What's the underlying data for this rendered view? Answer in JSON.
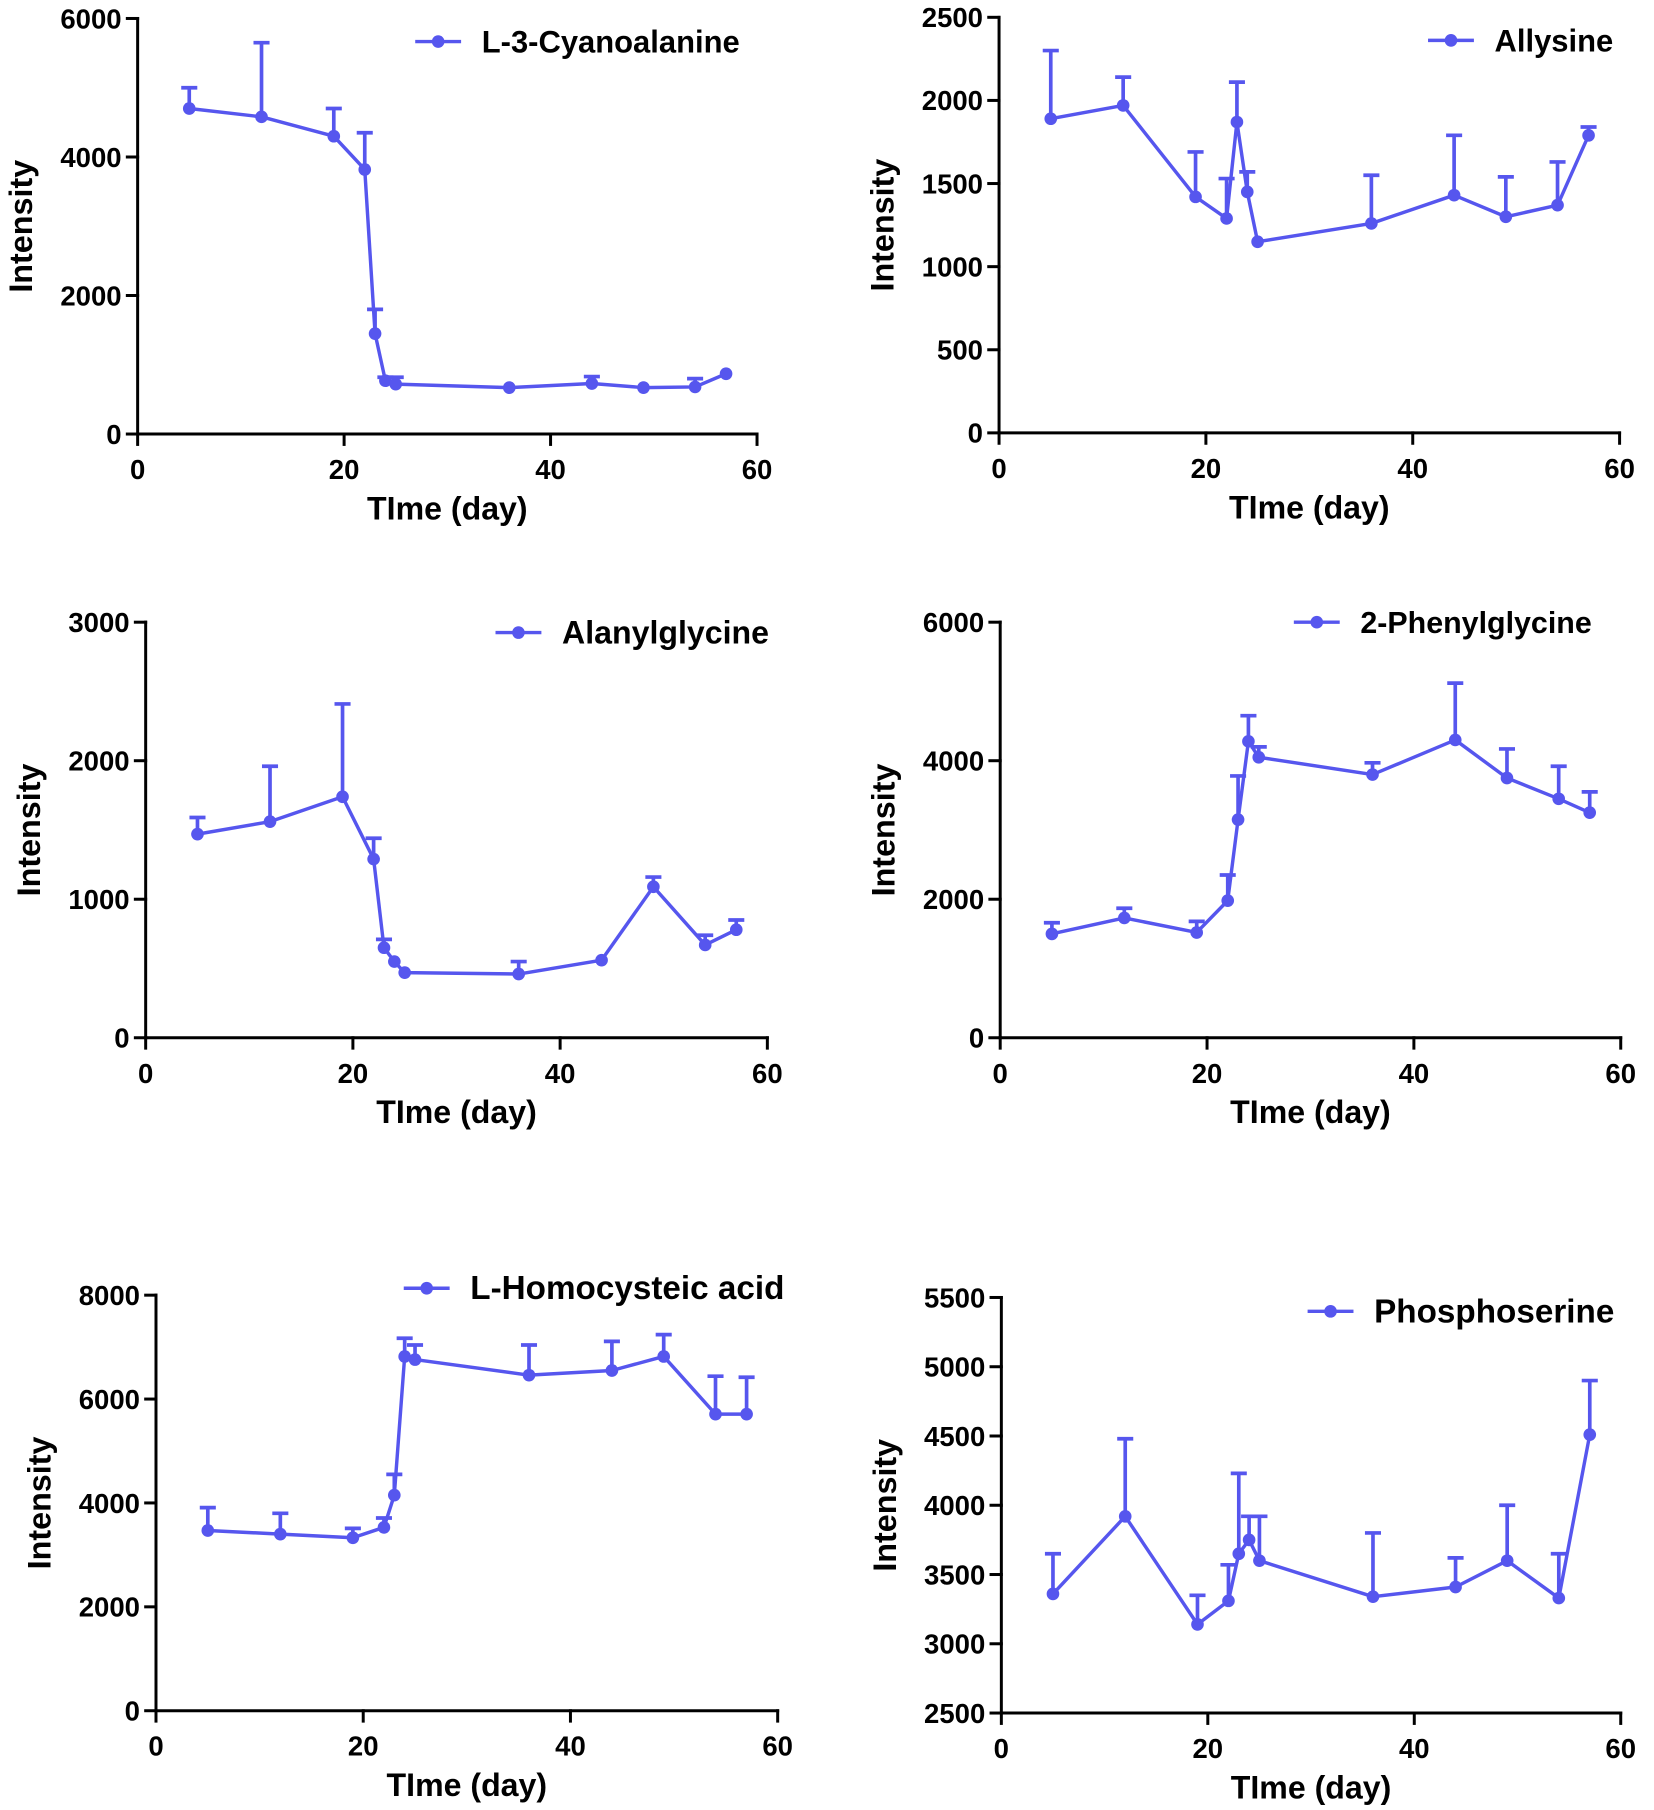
{
  "colors": {
    "series": "#5656ee"
  },
  "chart_data": [
    {
      "type": "line",
      "xlabel": "TIme (day)",
      "ylabel": "Intensity",
      "xlim": [
        0,
        60
      ],
      "ylim": [
        0,
        6000
      ],
      "xticks": [
        0,
        20,
        40,
        60
      ],
      "yticks": [
        0,
        2000,
        4000,
        6000
      ],
      "grid": false,
      "series": [
        {
          "name": "L-3-Cyanoalanine",
          "x": [
            5,
            12,
            19,
            22,
            23,
            24,
            25,
            36,
            44,
            49,
            54,
            57
          ],
          "y": [
            4700,
            4580,
            4300,
            3820,
            1450,
            770,
            720,
            670,
            730,
            670,
            680,
            870
          ],
          "error_bar_top": [
            5000,
            5650,
            4700,
            4350,
            1800,
            820,
            820,
            null,
            830,
            null,
            800,
            null
          ]
        }
      ]
    },
    {
      "type": "line",
      "xlabel": "TIme (day)",
      "ylabel": "Intensity",
      "xlim": [
        0,
        60
      ],
      "ylim": [
        0,
        2500
      ],
      "xticks": [
        0,
        20,
        40,
        60
      ],
      "yticks": [
        0,
        500,
        1000,
        1500,
        2000,
        2500
      ],
      "grid": false,
      "series": [
        {
          "name": "Allysine",
          "x": [
            5,
            12,
            19,
            22,
            23,
            24,
            25,
            36,
            44,
            49,
            54,
            57
          ],
          "y": [
            1890,
            1970,
            1420,
            1290,
            1870,
            1450,
            1150,
            1260,
            1430,
            1300,
            1370,
            1790
          ],
          "error_bar_top": [
            2300,
            2140,
            1690,
            1530,
            2110,
            1570,
            null,
            1550,
            1790,
            1540,
            1630,
            1840
          ]
        }
      ]
    },
    {
      "type": "line",
      "xlabel": "TIme (day)",
      "ylabel": "Intensity",
      "xlim": [
        0,
        60
      ],
      "ylim": [
        0,
        3000
      ],
      "xticks": [
        0,
        20,
        40,
        60
      ],
      "yticks": [
        0,
        1000,
        2000,
        3000
      ],
      "grid": false,
      "series": [
        {
          "name": "Alanylglycine",
          "x": [
            5,
            12,
            19,
            22,
            23,
            24,
            25,
            36,
            44,
            49,
            54,
            57
          ],
          "y": [
            1470,
            1560,
            1740,
            1290,
            650,
            550,
            470,
            460,
            560,
            1090,
            670,
            780
          ],
          "error_bar_top": [
            1590,
            1960,
            2410,
            1440,
            710,
            null,
            null,
            550,
            null,
            1160,
            740,
            850
          ]
        }
      ]
    },
    {
      "type": "line",
      "xlabel": "TIme (day)",
      "ylabel": "Intensity",
      "xlim": [
        0,
        60
      ],
      "ylim": [
        0,
        6000
      ],
      "xticks": [
        0,
        20,
        40,
        60
      ],
      "yticks": [
        0,
        2000,
        4000,
        6000
      ],
      "grid": false,
      "series": [
        {
          "name": "2-Phenylglycine",
          "x": [
            5,
            12,
            19,
            22,
            23,
            24,
            25,
            36,
            44,
            49,
            54,
            57
          ],
          "y": [
            1500,
            1730,
            1520,
            1980,
            3150,
            4280,
            4050,
            3800,
            4300,
            3750,
            3450,
            3250
          ],
          "error_bar_top": [
            1660,
            1870,
            1680,
            2350,
            3780,
            4650,
            4200,
            3970,
            5120,
            4170,
            3920,
            3550
          ]
        }
      ]
    },
    {
      "type": "line",
      "xlabel": "TIme (day)",
      "ylabel": "Intensity",
      "xlim": [
        0,
        60
      ],
      "ylim": [
        0,
        8000
      ],
      "xticks": [
        0,
        20,
        40,
        60
      ],
      "yticks": [
        0,
        2000,
        4000,
        6000,
        8000
      ],
      "grid": false,
      "series": [
        {
          "name": "L-Homocysteic acid",
          "x": [
            5,
            12,
            19,
            22,
            23,
            24,
            25,
            36,
            44,
            49,
            54,
            57
          ],
          "y": [
            3470,
            3400,
            3330,
            3530,
            4150,
            6820,
            6760,
            6460,
            6550,
            6820,
            5710,
            5710
          ],
          "error_bar_top": [
            3910,
            3800,
            3510,
            3710,
            4550,
            7170,
            7040,
            7040,
            7110,
            7240,
            6440,
            6420
          ]
        }
      ]
    },
    {
      "type": "line",
      "xlabel": "TIme (day)",
      "ylabel": "Intensity",
      "xlim": [
        0,
        60
      ],
      "ylim": [
        2500,
        5500
      ],
      "xticks": [
        0,
        20,
        40,
        60
      ],
      "yticks": [
        2500,
        3000,
        3500,
        4000,
        4500,
        5000,
        5500
      ],
      "grid": false,
      "series": [
        {
          "name": "Phosphoserine",
          "x": [
            5,
            12,
            19,
            22,
            23,
            24,
            25,
            36,
            44,
            49,
            54,
            57
          ],
          "y": [
            3360,
            3920,
            3140,
            3310,
            3650,
            3750,
            3600,
            3340,
            3410,
            3600,
            3330,
            4510
          ],
          "error_bar_top": [
            3650,
            4480,
            3350,
            3570,
            4230,
            3920,
            3920,
            3800,
            3620,
            4000,
            3650,
            4900
          ]
        }
      ]
    }
  ]
}
